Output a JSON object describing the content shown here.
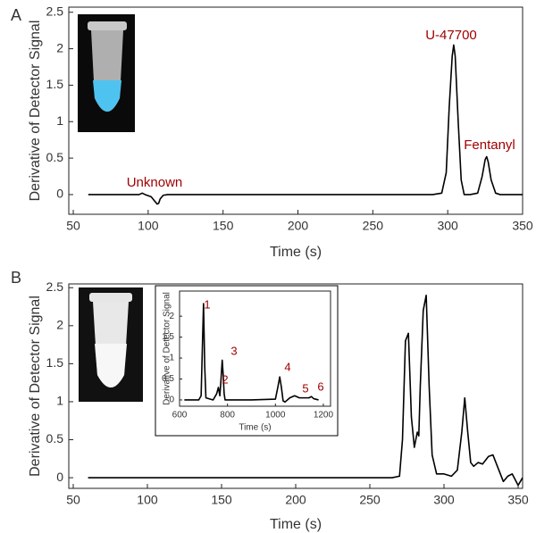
{
  "chart_data": [
    {
      "type": "line",
      "panel": "A",
      "xlabel": "Time (s)",
      "ylabel": "Derivative of Detector Signal",
      "xlim": [
        47,
        350
      ],
      "ylim": [
        -0.27,
        2.57
      ],
      "xticks": [
        50,
        100,
        150,
        200,
        250,
        300,
        350
      ],
      "yticks": [
        0,
        0.5,
        1,
        1.5,
        2,
        2.5
      ],
      "color": "#000000",
      "x": [
        60,
        90,
        94,
        96,
        98,
        102,
        104,
        106,
        107,
        108,
        110,
        113,
        120,
        200,
        290,
        296,
        299,
        301,
        303,
        304,
        305,
        307,
        309,
        311,
        315,
        320,
        323,
        325,
        326,
        327,
        329,
        332,
        335,
        340,
        350
      ],
      "values": [
        0,
        0,
        0,
        0.02,
        0,
        -0.03,
        -0.08,
        -0.13,
        -0.12,
        -0.06,
        -0.01,
        0,
        0,
        0,
        0,
        0.02,
        0.3,
        1.2,
        1.9,
        2.05,
        1.9,
        1.0,
        0.2,
        0,
        0,
        0.02,
        0.25,
        0.48,
        0.52,
        0.45,
        0.2,
        0.02,
        0,
        0,
        0
      ],
      "annotations": [
        "Unknown",
        "U-47700",
        "Fentanyl"
      ],
      "annotation_color": "#a00000"
    },
    {
      "type": "line",
      "panel": "B",
      "xlabel": "Time (s)",
      "ylabel": "Derivative of Detector Signal",
      "xlim": [
        47,
        353
      ],
      "ylim": [
        -0.14,
        2.55
      ],
      "xticks": [
        50,
        100,
        150,
        200,
        250,
        300,
        350
      ],
      "yticks": [
        0,
        0.5,
        1,
        1.5,
        2,
        2.5
      ],
      "color": "#000000",
      "x": [
        60,
        150,
        250,
        265,
        270,
        272,
        274,
        276,
        278,
        280,
        282,
        283,
        284,
        286,
        288,
        290,
        292,
        295,
        300,
        305,
        309,
        312,
        314,
        316,
        318,
        320,
        323,
        326,
        330,
        333,
        335,
        338,
        340,
        343,
        346,
        350,
        353
      ],
      "values": [
        0,
        0,
        0,
        0,
        0.02,
        0.5,
        1.8,
        1.9,
        0.8,
        0.4,
        0.6,
        0.55,
        1.2,
        2.2,
        2.4,
        1.2,
        0.3,
        0.05,
        0.05,
        0.02,
        0.1,
        0.6,
        1.05,
        0.6,
        0.2,
        0.15,
        0.2,
        0.18,
        0.28,
        0.3,
        0.2,
        0.05,
        -0.05,
        0.02,
        0.05,
        -0.1,
        0
      ]
    },
    {
      "type": "line",
      "xlabel": "Time (s)",
      "ylabel": "Derivative of Detector Signal",
      "xlim": [
        600,
        1230
      ],
      "ylim": [
        -0.15,
        2.6
      ],
      "xticks": [
        600,
        800,
        1000,
        1200
      ],
      "yticks": [
        0,
        0.5,
        1,
        1.5,
        2
      ],
      "color": "#000000",
      "x": [
        620,
        680,
        690,
        695,
        700,
        705,
        710,
        740,
        755,
        762,
        768,
        772,
        778,
        782,
        786,
        790,
        800,
        900,
        1000,
        1010,
        1018,
        1025,
        1032,
        1040,
        1060,
        1080,
        1100,
        1140,
        1150,
        1160,
        1180
      ],
      "values": [
        0,
        0,
        0.1,
        1.2,
        2.3,
        0.8,
        0.05,
        0,
        0.15,
        0.3,
        0.1,
        0.4,
        0.95,
        0.6,
        0.15,
        0,
        0,
        0,
        0.02,
        0.3,
        0.55,
        0.3,
        -0.02,
        -0.05,
        0.05,
        0.1,
        0.05,
        0.05,
        0.08,
        0.03,
        0
      ],
      "annotations": [
        "1",
        "2",
        "3",
        "4",
        "5",
        "6"
      ],
      "annotation_color": "#a00000"
    }
  ]
}
